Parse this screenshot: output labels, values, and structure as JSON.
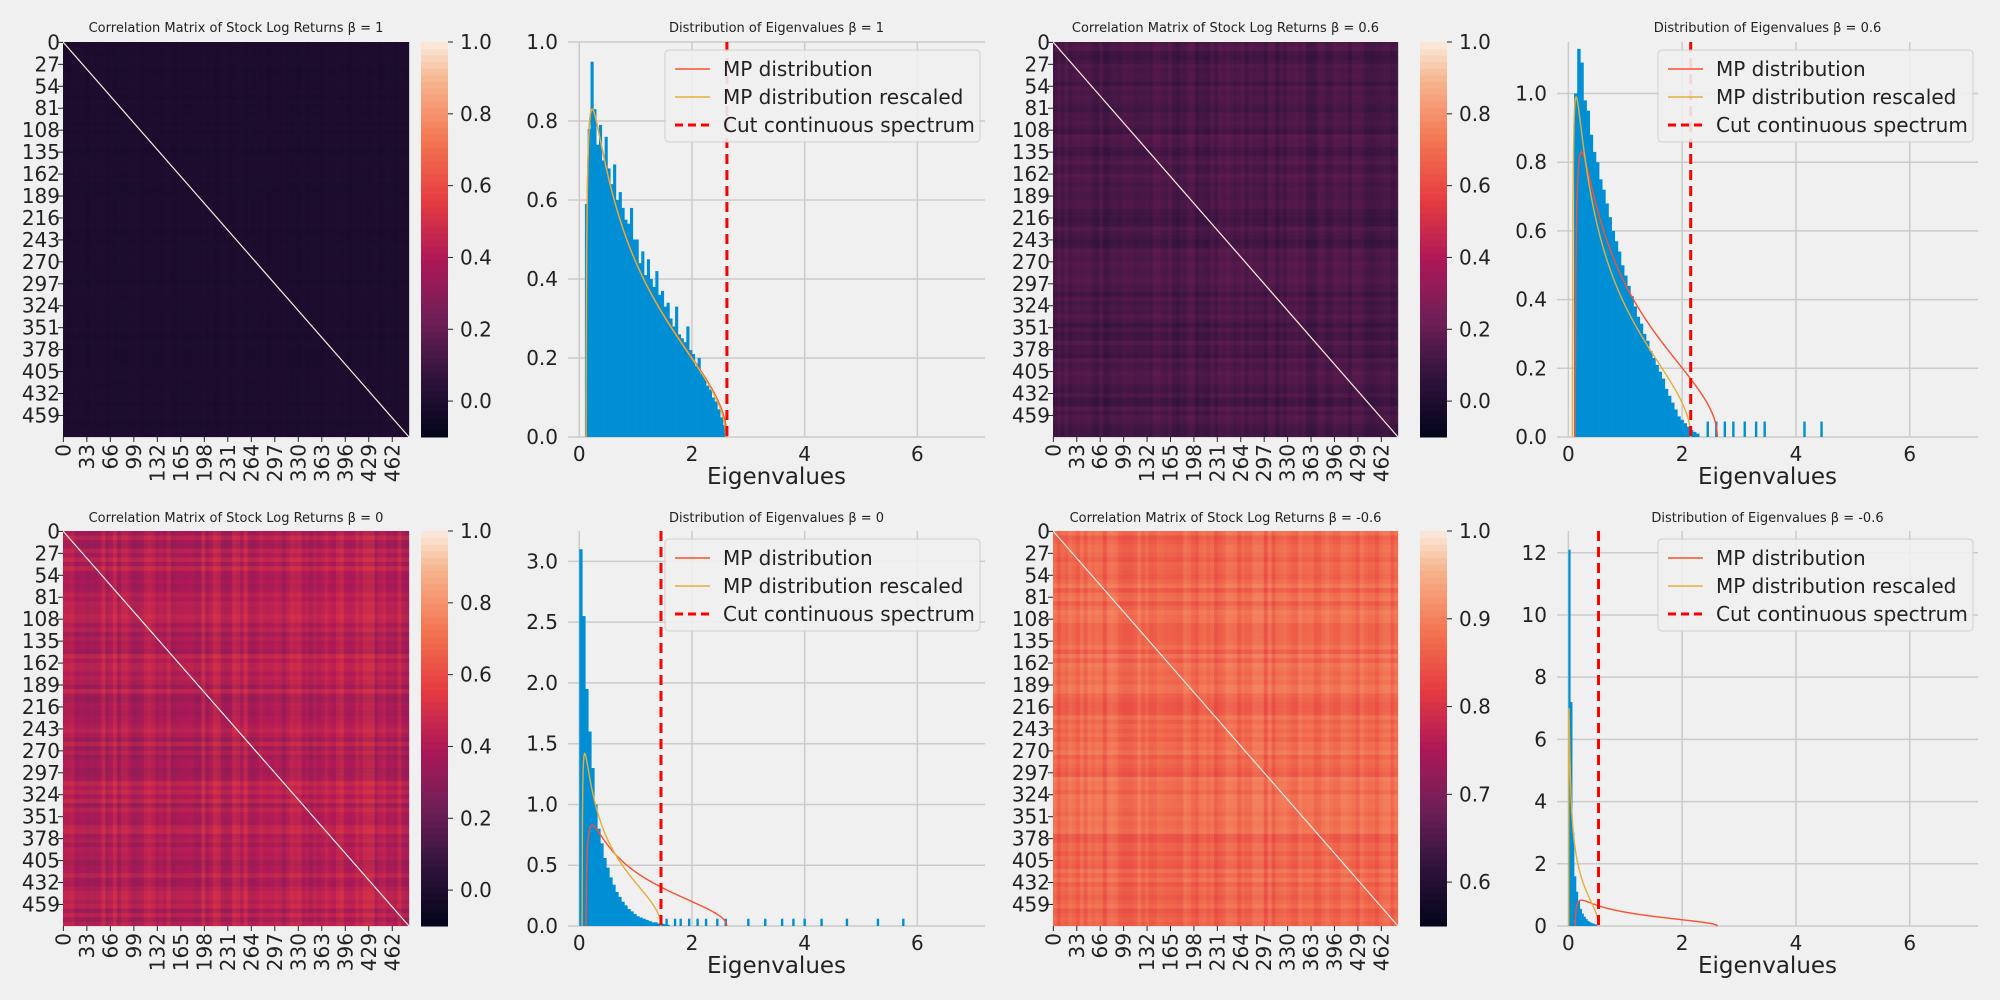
{
  "figure": {
    "background": "#f0f0f0",
    "grid_color": "#cbcbcb",
    "bar_color": "#008fd5",
    "mp_color": "#fc4f30",
    "mp_rescaled_color": "#e5ae38",
    "cut_color": "#ff0000"
  },
  "chart_data": [
    {
      "type": "heatmap",
      "panel": "corr-beta-1",
      "title": "Correlation Matrix of Stock Log Returns β = 1",
      "y_tick_labels": [
        "0",
        "27",
        "54",
        "81",
        "108",
        "135",
        "162",
        "189",
        "216",
        "243",
        "270",
        "297",
        "324",
        "351",
        "378",
        "405",
        "432",
        "459"
      ],
      "x_tick_labels": [
        "0",
        "33",
        "66",
        "99",
        "132",
        "165",
        "198",
        "231",
        "264",
        "297",
        "330",
        "363",
        "396",
        "429",
        "462"
      ],
      "matrix_size": 486,
      "base_value": 0.0,
      "stripe_strength": 0.02,
      "diagonal_value": 1.0,
      "colorbar": {
        "min": -0.1,
        "max": 1.0,
        "ticks": [
          "0.0",
          "0.2",
          "0.4",
          "0.6",
          "0.8",
          "1.0"
        ],
        "tick_values": [
          0.0,
          0.2,
          0.4,
          0.6,
          0.8,
          1.0
        ]
      }
    },
    {
      "type": "histogram",
      "panel": "eig-beta-1",
      "title": "Distribution of Eigenvalues β = 1",
      "xlabel": "Eigenvalues",
      "xlim": [
        -0.2,
        7.2
      ],
      "ylim": [
        0,
        1.0
      ],
      "x_ticks": [
        0,
        2,
        4,
        6
      ],
      "y_ticks": [
        0.0,
        0.2,
        0.4,
        0.6,
        0.8,
        1.0
      ],
      "y_tick_labels": [
        "0.0",
        "0.2",
        "0.4",
        "0.6",
        "0.8",
        "1.0"
      ],
      "hist_range": [
        0.1,
        2.6
      ],
      "hist_heights": [
        0.59,
        0.78,
        0.95,
        0.83,
        0.74,
        0.79,
        0.7,
        0.76,
        0.68,
        0.64,
        0.69,
        0.6,
        0.62,
        0.58,
        0.55,
        0.54,
        0.58,
        0.5,
        0.5,
        0.44,
        0.47,
        0.41,
        0.45,
        0.4,
        0.38,
        0.42,
        0.36,
        0.37,
        0.33,
        0.34,
        0.3,
        0.28,
        0.33,
        0.26,
        0.25,
        0.24,
        0.28,
        0.22,
        0.21,
        0.18,
        0.2,
        0.16,
        0.15,
        0.13,
        0.12,
        0.1,
        0.09,
        0.07,
        0.05,
        0.03
      ],
      "spikes": [],
      "mp": {
        "lambda_minus": 0.12,
        "lambda_plus": 2.62,
        "peak": 0.83
      },
      "mp_rescaled": {
        "lambda_minus": 0.12,
        "lambda_plus": 2.6,
        "peak": 0.83
      },
      "cut": 2.62,
      "legend": [
        "MP distribution",
        "MP distribution rescaled",
        "Cut continuous spectrum"
      ]
    },
    {
      "type": "heatmap",
      "panel": "corr-beta-0.6",
      "title": "Correlation Matrix of Stock Log Returns β = 0.6",
      "y_tick_labels": [
        "0",
        "27",
        "54",
        "81",
        "108",
        "135",
        "162",
        "189",
        "216",
        "243",
        "270",
        "297",
        "324",
        "351",
        "378",
        "405",
        "432",
        "459"
      ],
      "x_tick_labels": [
        "0",
        "33",
        "66",
        "99",
        "132",
        "165",
        "198",
        "231",
        "264",
        "297",
        "330",
        "363",
        "396",
        "429",
        "462"
      ],
      "matrix_size": 486,
      "base_value": 0.13,
      "stripe_strength": 0.08,
      "diagonal_value": 1.0,
      "colorbar": {
        "min": -0.1,
        "max": 1.0,
        "ticks": [
          "0.0",
          "0.2",
          "0.4",
          "0.6",
          "0.8",
          "1.0"
        ],
        "tick_values": [
          0.0,
          0.2,
          0.4,
          0.6,
          0.8,
          1.0
        ]
      }
    },
    {
      "type": "histogram",
      "panel": "eig-beta-0.6",
      "title": "Distribution of Eigenvalues β = 0.6",
      "xlabel": "Eigenvalues",
      "xlim": [
        -0.2,
        7.2
      ],
      "ylim": [
        0,
        1.15
      ],
      "x_ticks": [
        0,
        2,
        4,
        6
      ],
      "y_ticks": [
        0.0,
        0.2,
        0.4,
        0.6,
        0.8,
        1.0
      ],
      "y_tick_labels": [
        "0.0",
        "0.2",
        "0.4",
        "0.6",
        "0.8",
        "1.0"
      ],
      "hist_range": [
        0.1,
        2.3
      ],
      "hist_heights": [
        1.0,
        1.13,
        1.09,
        0.98,
        0.95,
        0.88,
        0.83,
        0.8,
        0.75,
        0.72,
        0.68,
        0.64,
        0.6,
        0.57,
        0.54,
        0.5,
        0.47,
        0.44,
        0.41,
        0.38,
        0.35,
        0.33,
        0.3,
        0.28,
        0.25,
        0.23,
        0.21,
        0.19,
        0.17,
        0.14,
        0.12,
        0.1,
        0.08,
        0.06,
        0.05,
        0.04,
        0.03,
        0.02,
        0.015,
        0.01
      ],
      "spikes": [
        2.45,
        2.6,
        2.75,
        2.9,
        3.1,
        3.3,
        3.45,
        4.15,
        4.45
      ],
      "spike_height": 0.045,
      "mp": {
        "lambda_minus": 0.12,
        "lambda_plus": 2.62,
        "peak": 0.83
      },
      "mp_rescaled": {
        "lambda_minus": 0.07,
        "lambda_plus": 2.15,
        "peak": 0.99
      },
      "cut": 2.15,
      "legend": [
        "MP distribution",
        "MP distribution rescaled",
        "Cut continuous spectrum"
      ]
    },
    {
      "type": "heatmap",
      "panel": "corr-beta-0",
      "title": "Correlation Matrix of Stock Log Returns β = 0",
      "y_tick_labels": [
        "0",
        "27",
        "54",
        "81",
        "108",
        "135",
        "162",
        "189",
        "216",
        "243",
        "270",
        "297",
        "324",
        "351",
        "378",
        "405",
        "432",
        "459"
      ],
      "x_tick_labels": [
        "0",
        "33",
        "66",
        "99",
        "132",
        "165",
        "198",
        "231",
        "264",
        "297",
        "330",
        "363",
        "396",
        "429",
        "462"
      ],
      "matrix_size": 486,
      "base_value": 0.42,
      "stripe_strength": 0.15,
      "diagonal_value": 1.0,
      "colorbar": {
        "min": -0.1,
        "max": 1.0,
        "ticks": [
          "0.0",
          "0.2",
          "0.4",
          "0.6",
          "0.8",
          "1.0"
        ],
        "tick_values": [
          0.0,
          0.2,
          0.4,
          0.6,
          0.8,
          1.0
        ]
      }
    },
    {
      "type": "histogram",
      "panel": "eig-beta-0",
      "title": "Distribution of Eigenvalues β = 0",
      "xlabel": "Eigenvalues",
      "xlim": [
        -0.2,
        7.2
      ],
      "ylim": [
        0,
        3.25
      ],
      "x_ticks": [
        0,
        2,
        4,
        6
      ],
      "y_ticks": [
        0.0,
        0.5,
        1.0,
        1.5,
        2.0,
        2.5,
        3.0
      ],
      "y_tick_labels": [
        "0.0",
        "0.5",
        "1.0",
        "1.5",
        "2.0",
        "2.5",
        "3.0"
      ],
      "hist_range": [
        0.0,
        1.6
      ],
      "hist_heights": [
        3.1,
        2.55,
        1.95,
        1.6,
        1.3,
        1.0,
        0.8,
        0.68,
        0.56,
        0.48,
        0.4,
        0.34,
        0.28,
        0.24,
        0.2,
        0.17,
        0.14,
        0.12,
        0.1,
        0.08,
        0.07,
        0.06,
        0.05,
        0.04,
        0.03,
        0.03,
        0.02,
        0.02,
        0.015,
        0.01
      ],
      "spikes": [
        1.55,
        1.7,
        1.8,
        1.95,
        2.1,
        2.25,
        2.45,
        2.6,
        3.0,
        3.3,
        3.6,
        3.8,
        4.0,
        4.3,
        4.75,
        5.3,
        5.75
      ],
      "spike_height": 0.06,
      "mp": {
        "lambda_minus": 0.12,
        "lambda_plus": 2.62,
        "peak": 0.83
      },
      "mp_rescaled": {
        "lambda_minus": 0.05,
        "lambda_plus": 1.45,
        "peak": 1.42
      },
      "cut": 1.45,
      "legend": [
        "MP distribution",
        "MP distribution rescaled",
        "Cut continuous spectrum"
      ]
    },
    {
      "type": "heatmap",
      "panel": "corr-beta-neg0.6",
      "title": "Correlation Matrix of Stock Log Returns β = -0.6",
      "y_tick_labels": [
        "0",
        "27",
        "54",
        "81",
        "108",
        "135",
        "162",
        "189",
        "216",
        "243",
        "270",
        "297",
        "324",
        "351",
        "378",
        "405",
        "432",
        "459"
      ],
      "x_tick_labels": [
        "0",
        "33",
        "66",
        "99",
        "132",
        "165",
        "198",
        "231",
        "264",
        "297",
        "330",
        "363",
        "396",
        "429",
        "462"
      ],
      "matrix_size": 486,
      "base_value": 0.87,
      "stripe_strength": 0.05,
      "diagonal_value": 1.0,
      "colorbar": {
        "min": 0.55,
        "max": 1.0,
        "ticks": [
          "0.6",
          "0.7",
          "0.8",
          "0.9",
          "1.0"
        ],
        "tick_values": [
          0.6,
          0.7,
          0.8,
          0.9,
          1.0
        ]
      }
    },
    {
      "type": "histogram",
      "panel": "eig-beta-neg0.6",
      "title": "Distribution of Eigenvalues β = -0.6",
      "xlabel": "Eigenvalues",
      "xlim": [
        -0.2,
        7.2
      ],
      "ylim": [
        0,
        12.7
      ],
      "x_ticks": [
        0,
        2,
        4,
        6
      ],
      "y_ticks": [
        0,
        2,
        4,
        6,
        8,
        10,
        12
      ],
      "y_tick_labels": [
        "0",
        "2",
        "4",
        "6",
        "8",
        "10",
        "12"
      ],
      "hist_range": [
        0.0,
        0.5
      ],
      "hist_heights": [
        12.1,
        7.2,
        3.0,
        1.6,
        1.1,
        0.8,
        0.55,
        0.4,
        0.3,
        0.22,
        0.16,
        0.12,
        0.09,
        0.07,
        0.05
      ],
      "spikes": [],
      "mp": {
        "lambda_minus": 0.12,
        "lambda_plus": 2.62,
        "peak": 0.83
      },
      "mp_rescaled": {
        "lambda_minus": 0.005,
        "lambda_plus": 0.53,
        "peak": 7.0
      },
      "cut": 0.53,
      "legend": [
        "MP distribution",
        "MP distribution rescaled",
        "Cut continuous spectrum"
      ]
    }
  ]
}
